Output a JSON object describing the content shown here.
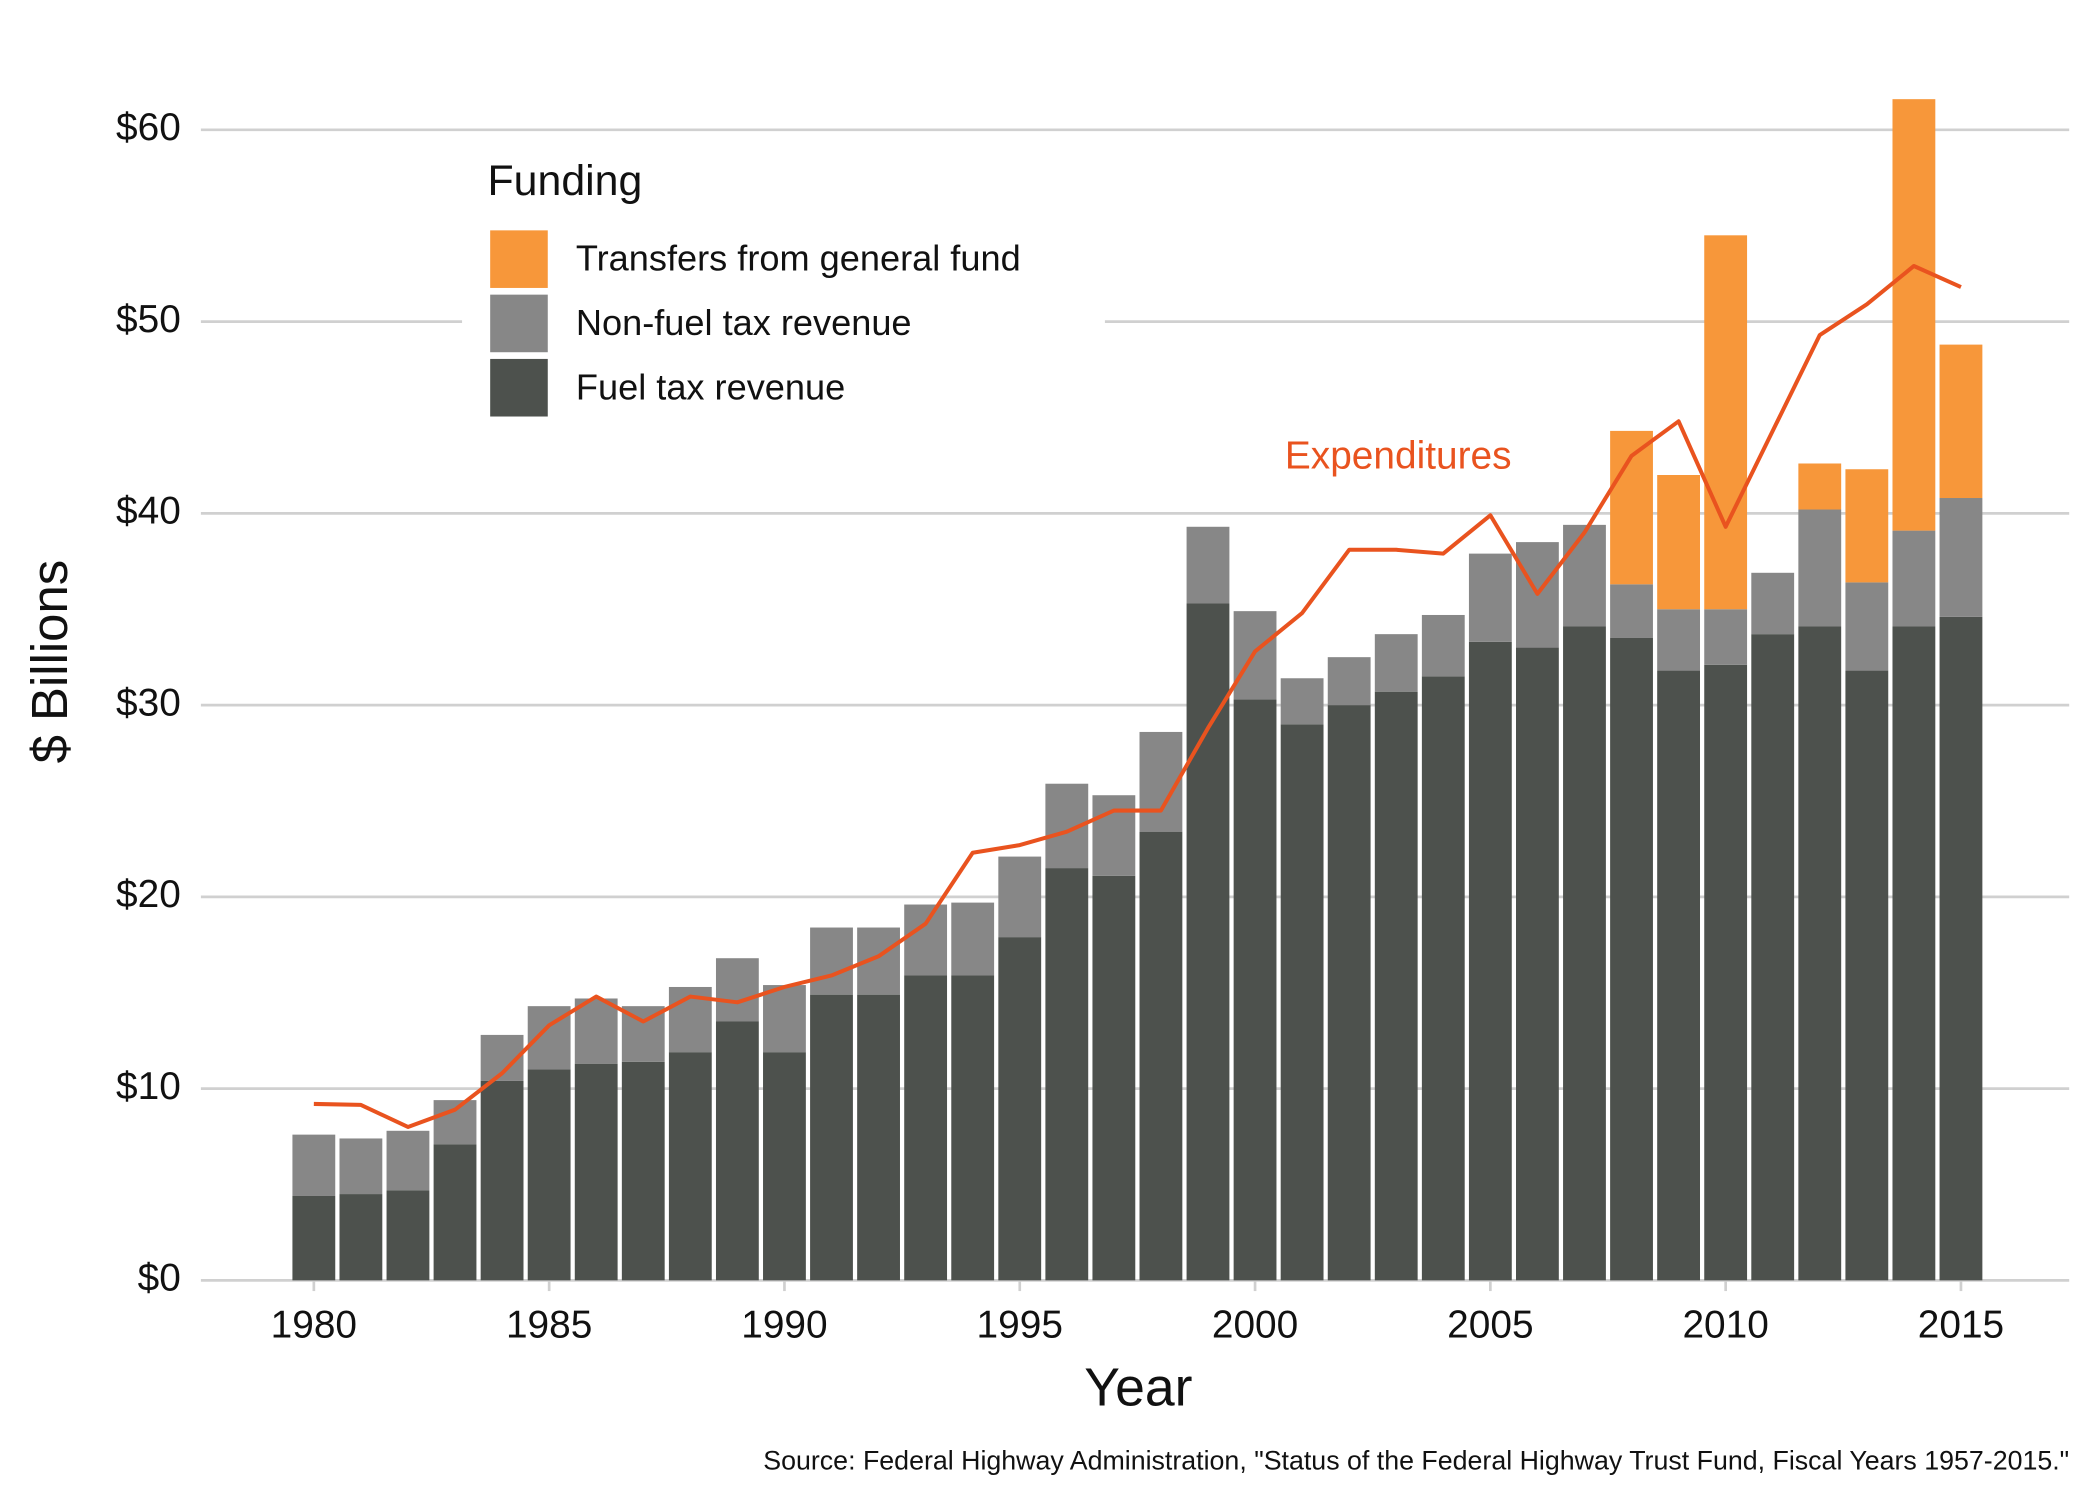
{
  "chart_data": {
    "type": "bar",
    "stacked": true,
    "x_label": "Year",
    "y_label": "$ Billions",
    "source": "Source: Federal Highway Administration, \"Status of the Federal Highway Trust Fund, Fiscal Years 1957-2015.\"",
    "legend_title": "Funding",
    "legend": "top-left",
    "grid": true,
    "x": [
      1980,
      1981,
      1982,
      1983,
      1984,
      1985,
      1986,
      1987,
      1988,
      1989,
      1990,
      1991,
      1992,
      1993,
      1994,
      1995,
      1996,
      1997,
      1998,
      1999,
      2000,
      2001,
      2002,
      2003,
      2004,
      2005,
      2006,
      2007,
      2008,
      2009,
      2010,
      2011,
      2012,
      2013,
      2014,
      2015
    ],
    "xlim": [
      1977.6,
      2017.3
    ],
    "xticks": [
      1980,
      1985,
      1990,
      1995,
      2000,
      2005,
      2010,
      2015
    ],
    "ylim": [
      0,
      63
    ],
    "yticks": [
      {
        "value": 0,
        "label": "$0"
      },
      {
        "value": 10,
        "label": "$10"
      },
      {
        "value": 20,
        "label": "$20"
      },
      {
        "value": 30,
        "label": "$30"
      },
      {
        "value": 40,
        "label": "$40"
      },
      {
        "value": 50,
        "label": "$50"
      },
      {
        "value": 60,
        "label": "$60"
      }
    ],
    "series": [
      {
        "name": "Fuel tax revenue",
        "type": "bar",
        "color": "#4d514d",
        "values": [
          4.4,
          4.5,
          4.7,
          7.1,
          10.4,
          11.0,
          11.3,
          11.4,
          11.9,
          13.5,
          11.9,
          14.9,
          14.9,
          15.9,
          15.9,
          17.9,
          21.5,
          21.1,
          23.4,
          35.3,
          30.3,
          29.0,
          30.0,
          30.7,
          31.5,
          33.3,
          33.0,
          34.1,
          33.5,
          31.8,
          32.1,
          33.7,
          34.1,
          31.8,
          34.1,
          34.6
        ]
      },
      {
        "name": "Non-fuel tax revenue",
        "type": "bar",
        "color": "#878787",
        "values": [
          3.2,
          2.9,
          3.1,
          2.3,
          2.4,
          3.3,
          3.4,
          2.9,
          3.4,
          3.3,
          3.5,
          3.5,
          3.5,
          3.7,
          3.8,
          4.2,
          4.4,
          4.2,
          5.2,
          4.0,
          4.6,
          2.4,
          2.5,
          3.0,
          3.2,
          4.6,
          5.5,
          5.3,
          2.8,
          3.2,
          2.9,
          3.2,
          6.1,
          4.6,
          5.0,
          6.2
        ]
      },
      {
        "name": "Transfers from general fund",
        "type": "bar",
        "color": "#f7973a",
        "values": [
          null,
          null,
          null,
          null,
          null,
          null,
          null,
          null,
          null,
          null,
          null,
          null,
          null,
          null,
          null,
          null,
          null,
          null,
          null,
          null,
          null,
          null,
          null,
          null,
          null,
          null,
          null,
          null,
          8.0,
          7.0,
          19.5,
          null,
          2.4,
          5.9,
          22.5,
          8.0
        ]
      },
      {
        "name": "Expenditures",
        "type": "line",
        "color": "#e9531f",
        "values": [
          9.2,
          9.15,
          8.0,
          8.9,
          10.8,
          13.3,
          14.8,
          13.5,
          14.8,
          14.5,
          15.3,
          15.9,
          16.9,
          18.6,
          22.3,
          22.7,
          23.4,
          24.5,
          24.5,
          28.8,
          32.8,
          34.8,
          38.1,
          38.1,
          37.9,
          39.9,
          35.8,
          39.0,
          43.0,
          44.8,
          39.3,
          44.3,
          49.3,
          50.9,
          52.9,
          51.8
        ]
      }
    ]
  }
}
